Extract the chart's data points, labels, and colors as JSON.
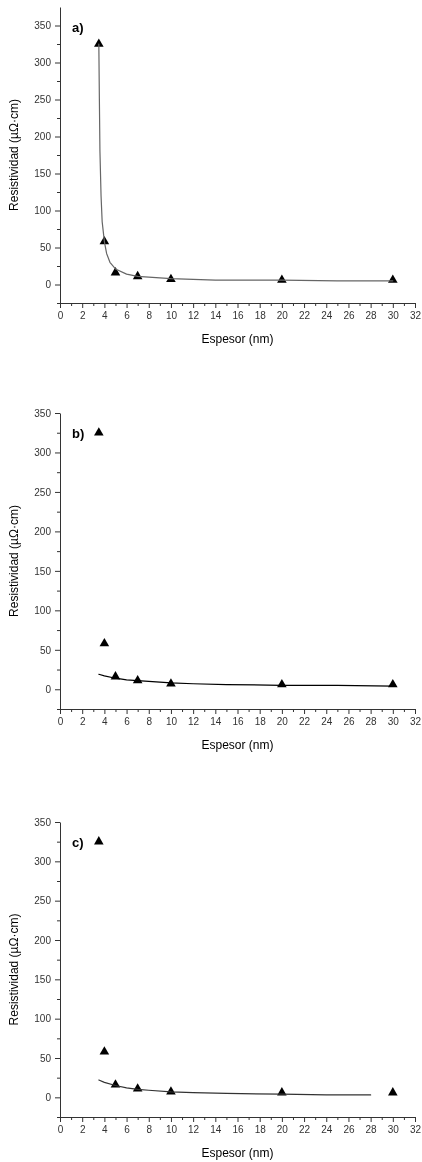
{
  "chart_data": [
    {
      "type": "scatter",
      "title": "a)",
      "xlabel": "Espesor (nm)",
      "ylabel": "Resistividad (µΩ·cm)",
      "xlim": [
        0,
        32
      ],
      "ylim": [
        -25,
        375
      ],
      "marker": "triangle",
      "xticks": [
        0,
        {
          "value": 1,
          "label": null
        },
        2,
        {
          "value": 3,
          "label": null
        },
        4,
        {
          "value": 5,
          "label": null
        },
        6,
        {
          "value": 7,
          "label": null
        },
        8,
        {
          "value": 9,
          "label": null
        },
        10,
        {
          "value": 11,
          "label": null
        },
        12,
        {
          "value": 13,
          "label": null
        },
        14,
        {
          "value": 15,
          "label": null
        },
        16,
        {
          "value": 17,
          "label": null
        },
        18,
        {
          "value": 19,
          "label": null
        },
        20,
        {
          "value": 21,
          "label": null
        },
        22,
        {
          "value": 23,
          "label": null
        },
        24,
        {
          "value": 25,
          "label": null
        },
        26,
        {
          "value": 27,
          "label": null
        },
        28,
        {
          "value": 29,
          "label": null
        },
        30,
        {
          "value": 31,
          "label": null
        },
        32
      ],
      "yticks": [
        {
          "value": -25,
          "label": null
        },
        0,
        {
          "value": 25,
          "label": null
        },
        50,
        {
          "value": 75,
          "label": null
        },
        100,
        {
          "value": 125,
          "label": null
        },
        150,
        {
          "value": 175,
          "label": null
        },
        200,
        {
          "value": 225,
          "label": null
        },
        250,
        {
          "value": 275,
          "label": null
        },
        300,
        {
          "value": 325,
          "label": null
        },
        350
      ],
      "series": [
        {
          "color": "#000000",
          "x": [
            3.5,
            4,
            5,
            7,
            10,
            20,
            30
          ],
          "values": [
            325,
            58,
            16,
            11,
            7,
            6,
            6
          ]
        },
        {
          "type": "line",
          "color": "#666666",
          "marker": "none",
          "x": [
            3.5,
            3.55,
            3.6,
            3.7,
            3.8,
            4,
            4.2,
            4.5,
            5,
            6,
            7,
            8,
            10,
            14,
            20,
            25,
            30
          ],
          "values": [
            325,
            250,
            180,
            120,
            85,
            58,
            42,
            30,
            21,
            14,
            11,
            10,
            8,
            6,
            6,
            5,
            5
          ]
        }
      ]
    },
    {
      "type": "scatter",
      "title": "b)",
      "xlabel": "Espesor (nm)",
      "ylabel": "Resistividad (µΩ·cm)",
      "xlim": [
        0,
        32
      ],
      "ylim": [
        -25,
        350
      ],
      "marker": "triangle",
      "xticks": [
        0,
        {
          "value": 1,
          "label": null
        },
        2,
        {
          "value": 3,
          "label": null
        },
        4,
        {
          "value": 5,
          "label": null
        },
        6,
        {
          "value": 7,
          "label": null
        },
        8,
        {
          "value": 9,
          "label": null
        },
        10,
        {
          "value": 11,
          "label": null
        },
        12,
        {
          "value": 13,
          "label": null
        },
        14,
        {
          "value": 15,
          "label": null
        },
        16,
        {
          "value": 17,
          "label": null
        },
        18,
        {
          "value": 19,
          "label": null
        },
        20,
        {
          "value": 21,
          "label": null
        },
        22,
        {
          "value": 23,
          "label": null
        },
        24,
        {
          "value": 25,
          "label": null
        },
        26,
        {
          "value": 27,
          "label": null
        },
        28,
        {
          "value": 29,
          "label": null
        },
        30,
        {
          "value": 31,
          "label": null
        },
        32
      ],
      "yticks": [
        {
          "value": -25,
          "label": null
        },
        0,
        {
          "value": 25,
          "label": null
        },
        50,
        {
          "value": 75,
          "label": null
        },
        100,
        {
          "value": 125,
          "label": null
        },
        150,
        {
          "value": 175,
          "label": null
        },
        200,
        {
          "value": 225,
          "label": null
        },
        250,
        {
          "value": 275,
          "label": null
        },
        300,
        {
          "value": 325,
          "label": null
        },
        350
      ],
      "series": [
        {
          "color": "#000000",
          "x": [
            3.5,
            4,
            5,
            7,
            10,
            20,
            30
          ],
          "values": [
            325,
            58,
            16,
            11,
            7,
            6,
            6
          ]
        },
        {
          "type": "line",
          "color": "#000000",
          "marker": "none",
          "x": [
            3.5,
            4,
            5,
            6,
            7,
            8,
            10,
            12,
            15,
            20,
            25,
            30
          ],
          "values": [
            19,
            17,
            14,
            12,
            11,
            10,
            8,
            7,
            6,
            5,
            5,
            4
          ]
        }
      ]
    },
    {
      "type": "scatter",
      "title": "c)",
      "xlabel": "Espesor (nm)",
      "ylabel": "Resistividad (µΩ·cm)",
      "xlim": [
        0,
        32
      ],
      "ylim": [
        -25,
        350
      ],
      "marker": "triangle",
      "xticks": [
        0,
        {
          "value": 1,
          "label": null
        },
        2,
        {
          "value": 3,
          "label": null
        },
        4,
        {
          "value": 5,
          "label": null
        },
        6,
        {
          "value": 7,
          "label": null
        },
        8,
        {
          "value": 9,
          "label": null
        },
        10,
        {
          "value": 11,
          "label": null
        },
        12,
        {
          "value": 13,
          "label": null
        },
        14,
        {
          "value": 15,
          "label": null
        },
        16,
        {
          "value": 17,
          "label": null
        },
        18,
        {
          "value": 19,
          "label": null
        },
        20,
        {
          "value": 21,
          "label": null
        },
        22,
        {
          "value": 23,
          "label": null
        },
        24,
        {
          "value": 25,
          "label": null
        },
        26,
        {
          "value": 27,
          "label": null
        },
        28,
        {
          "value": 29,
          "label": null
        },
        30,
        {
          "value": 31,
          "label": null
        },
        32
      ],
      "yticks": [
        {
          "value": -25,
          "label": null
        },
        0,
        {
          "value": 25,
          "label": null
        },
        50,
        {
          "value": 75,
          "label": null
        },
        100,
        {
          "value": 125,
          "label": null
        },
        150,
        {
          "value": 175,
          "label": null
        },
        200,
        {
          "value": 225,
          "label": null
        },
        250,
        {
          "value": 275,
          "label": null
        },
        300,
        {
          "value": 325,
          "label": null
        },
        350
      ],
      "series": [
        {
          "color": "#000000",
          "x": [
            3.5,
            4,
            5,
            7,
            10,
            20,
            30
          ],
          "values": [
            325,
            58,
            16,
            11,
            7,
            6,
            6
          ]
        },
        {
          "type": "line",
          "color": "#333333",
          "marker": "none",
          "x": [
            3.5,
            4,
            5,
            6,
            7,
            8,
            10,
            12,
            15,
            20,
            24,
            28
          ],
          "values": [
            22,
            19,
            15,
            12,
            10,
            9,
            7,
            6,
            5,
            4,
            3,
            3
          ]
        }
      ]
    }
  ]
}
